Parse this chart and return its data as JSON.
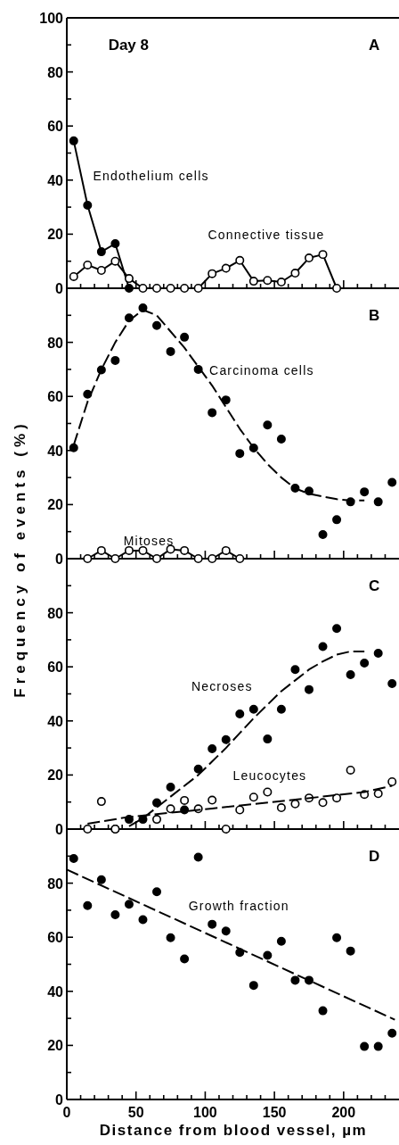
{
  "chart_data": [
    {
      "type": "line",
      "annotations": [
        "Day 8",
        "A"
      ],
      "xlim": [
        0,
        240
      ],
      "ylim": [
        0,
        100
      ],
      "tick_labels": "y",
      "grid": false,
      "xticks": [
        0,
        {
          "value": 10,
          "label": null
        },
        {
          "value": 20,
          "label": null
        },
        {
          "value": 30,
          "label": null
        },
        {
          "value": 40,
          "label": null
        },
        {
          "value": 50,
          "label": null
        },
        {
          "value": 60,
          "label": null
        },
        {
          "value": 70,
          "label": null
        },
        {
          "value": 80,
          "label": null
        },
        {
          "value": 90,
          "label": null
        },
        {
          "value": 100,
          "label": null
        },
        {
          "value": 110,
          "label": null
        },
        {
          "value": 120,
          "label": null
        },
        {
          "value": 130,
          "label": null
        },
        {
          "value": 140,
          "label": null
        },
        {
          "value": 150,
          "label": null
        },
        {
          "value": 160,
          "label": null
        },
        {
          "value": 170,
          "label": null
        },
        {
          "value": 180,
          "label": null
        },
        {
          "value": 190,
          "label": null
        },
        {
          "value": 200,
          "label": null
        },
        {
          "value": 210,
          "label": null
        },
        {
          "value": 220,
          "label": null
        },
        {
          "value": 230,
          "label": null
        }
      ],
      "yticks": [
        0,
        {
          "value": 10,
          "label": null
        },
        20,
        {
          "value": 30,
          "label": null
        },
        40,
        {
          "value": 50,
          "label": null
        },
        60,
        {
          "value": 70,
          "label": null
        },
        80,
        {
          "value": 90,
          "label": null
        },
        100
      ],
      "series": [
        {
          "name": "Endothelium cells",
          "color": "#000000",
          "marker": "circle",
          "line_style": "solid",
          "x": [
            5,
            15,
            25,
            35,
            45
          ],
          "values": [
            54.5,
            30.7,
            13.5,
            16.5,
            0
          ]
        },
        {
          "name": "Connective tissue",
          "color": "#ffffff",
          "marker": "circle",
          "line_style": "solid",
          "x": [
            5,
            15,
            25,
            35,
            45,
            55,
            65,
            75,
            85,
            95,
            105,
            115,
            125,
            135,
            145,
            155,
            165,
            175,
            185,
            195
          ],
          "values": [
            4.3,
            8.6,
            6.6,
            10,
            3.6,
            0,
            0,
            0,
            0,
            0,
            5.4,
            7.4,
            10.3,
            2.6,
            2.9,
            2.3,
            5.6,
            11.2,
            12.5,
            0
          ]
        }
      ]
    },
    {
      "type": "line",
      "annotations": [
        "B"
      ],
      "ylabel": "Frequency of events (%)",
      "xlim": [
        0,
        240
      ],
      "ylim": [
        0,
        100
      ],
      "tick_labels": "y",
      "grid": false,
      "xticks": [
        0,
        {
          "value": 10,
          "label": null
        },
        {
          "value": 20,
          "label": null
        },
        {
          "value": 30,
          "label": null
        },
        {
          "value": 40,
          "label": null
        },
        {
          "value": 50,
          "label": null
        },
        {
          "value": 60,
          "label": null
        },
        {
          "value": 70,
          "label": null
        },
        {
          "value": 80,
          "label": null
        },
        {
          "value": 90,
          "label": null
        },
        {
          "value": 100,
          "label": null
        },
        {
          "value": 110,
          "label": null
        },
        {
          "value": 120,
          "label": null
        },
        {
          "value": 130,
          "label": null
        },
        {
          "value": 140,
          "label": null
        },
        {
          "value": 150,
          "label": null
        },
        {
          "value": 160,
          "label": null
        },
        {
          "value": 170,
          "label": null
        },
        {
          "value": 180,
          "label": null
        },
        {
          "value": 190,
          "label": null
        },
        {
          "value": 200,
          "label": null
        },
        {
          "value": 210,
          "label": null
        },
        {
          "value": 220,
          "label": null
        },
        {
          "value": 230,
          "label": null
        }
      ],
      "yticks": [
        0,
        {
          "value": 10,
          "label": null
        },
        20,
        {
          "value": 30,
          "label": null
        },
        40,
        {
          "value": 50,
          "label": null
        },
        60,
        {
          "value": 70,
          "label": null
        },
        80,
        {
          "value": 90,
          "label": null
        }
      ],
      "series": [
        {
          "name": "Carcinoma cells",
          "type": "scatter",
          "color": "#000000",
          "marker": "circle",
          "x": [
            5,
            15,
            25,
            35,
            45,
            55,
            65,
            75,
            85,
            95,
            105,
            115,
            125,
            135,
            145,
            155,
            165,
            175,
            185,
            195,
            205,
            215,
            225,
            235
          ],
          "values": [
            41,
            60.8,
            69.8,
            73.3,
            89,
            92.7,
            86.2,
            76.6,
            81.9,
            70,
            54,
            58.7,
            38.9,
            40.9,
            49.4,
            44.2,
            26.1,
            25,
            8.9,
            14.4,
            21,
            24.7,
            21,
            28.2
          ]
        },
        {
          "color": "#000000",
          "marker": "none",
          "line_style": "dashed",
          "x": [
            5,
            15,
            25,
            35,
            45,
            55,
            65,
            75,
            85,
            95,
            105,
            115,
            125,
            135,
            145,
            155,
            165,
            175,
            185,
            195,
            205,
            215
          ],
          "values": [
            42,
            58,
            70,
            80,
            88,
            92,
            90,
            84,
            78,
            71,
            64,
            56,
            48,
            41,
            35,
            30,
            26,
            24,
            23,
            22,
            21.5,
            21.5
          ]
        },
        {
          "name": "Mitoses",
          "color": "#ffffff",
          "marker": "circle",
          "line_style": "solid",
          "x": [
            15,
            25,
            35,
            45,
            55,
            65,
            75,
            85,
            95,
            105,
            115,
            125
          ],
          "values": [
            0,
            3,
            0,
            3,
            3,
            0,
            3.5,
            3,
            0,
            0,
            3,
            0
          ]
        }
      ]
    },
    {
      "type": "line",
      "annotations": [
        "C"
      ],
      "xlim": [
        0,
        240
      ],
      "ylim": [
        0,
        100
      ],
      "tick_labels": "y",
      "grid": false,
      "xticks": [
        0,
        {
          "value": 10,
          "label": null
        },
        {
          "value": 20,
          "label": null
        },
        {
          "value": 30,
          "label": null
        },
        {
          "value": 40,
          "label": null
        },
        {
          "value": 50,
          "label": null
        },
        {
          "value": 60,
          "label": null
        },
        {
          "value": 70,
          "label": null
        },
        {
          "value": 80,
          "label": null
        },
        {
          "value": 90,
          "label": null
        },
        {
          "value": 100,
          "label": null
        },
        {
          "value": 110,
          "label": null
        },
        {
          "value": 120,
          "label": null
        },
        {
          "value": 130,
          "label": null
        },
        {
          "value": 140,
          "label": null
        },
        {
          "value": 150,
          "label": null
        },
        {
          "value": 160,
          "label": null
        },
        {
          "value": 170,
          "label": null
        },
        {
          "value": 180,
          "label": null
        },
        {
          "value": 190,
          "label": null
        },
        {
          "value": 200,
          "label": null
        },
        {
          "value": 210,
          "label": null
        },
        {
          "value": 220,
          "label": null
        },
        {
          "value": 230,
          "label": null
        }
      ],
      "yticks": [
        0,
        {
          "value": 10,
          "label": null
        },
        20,
        {
          "value": 30,
          "label": null
        },
        40,
        {
          "value": 50,
          "label": null
        },
        60,
        {
          "value": 70,
          "label": null
        },
        80,
        {
          "value": 90,
          "label": null
        }
      ],
      "series": [
        {
          "name": "Necroses",
          "type": "scatter",
          "color": "#000000",
          "marker": "circle",
          "x": [
            35,
            45,
            55,
            65,
            75,
            85,
            95,
            105,
            115,
            125,
            135,
            145,
            155,
            165,
            175,
            185,
            195,
            205,
            215,
            225,
            235
          ],
          "values": [
            0,
            3.6,
            3.6,
            9.7,
            15.5,
            7.1,
            22.2,
            29.7,
            33.1,
            42.6,
            44.3,
            33.3,
            44.3,
            59,
            51.6,
            67.5,
            74.2,
            57.1,
            61.4,
            65,
            53.8
          ]
        },
        {
          "color": "#000000",
          "marker": "none",
          "line_style": "dashed",
          "x": [
            45,
            55,
            65,
            75,
            85,
            95,
            105,
            115,
            125,
            135,
            145,
            155,
            165,
            175,
            185,
            195,
            205,
            215
          ],
          "values": [
            1,
            4,
            8,
            12,
            16,
            20,
            25,
            30,
            35.5,
            41,
            46,
            51,
            55,
            59,
            62,
            64.5,
            65.7,
            65.7
          ]
        },
        {
          "name": "Leucocytes",
          "type": "scatter",
          "color": "#ffffff",
          "marker": "circle",
          "x": [
            15,
            25,
            35,
            65,
            75,
            85,
            95,
            105,
            115,
            125,
            135,
            145,
            155,
            165,
            175,
            185,
            195,
            205,
            215,
            225,
            235
          ],
          "values": [
            0,
            10.2,
            0,
            3.6,
            7.5,
            10.6,
            7.5,
            10.7,
            0,
            7.1,
            11.8,
            13.7,
            7.9,
            9.3,
            11.5,
            9.8,
            11.5,
            21.8,
            12.8,
            13.1,
            17.5
          ]
        },
        {
          "color": "#000000",
          "marker": "none",
          "line_style": "dashed",
          "x": [
            15,
            45,
            105,
            165,
            215,
            235
          ],
          "values": [
            2,
            4.5,
            7.6,
            10.9,
            13.7,
            16
          ]
        }
      ]
    },
    {
      "type": "line",
      "annotations": [
        "D"
      ],
      "xlabel": "Distance from blood vessel, µm",
      "xlim": [
        0,
        240
      ],
      "ylim": [
        0,
        100
      ],
      "grid": false,
      "xticks": [
        0,
        {
          "value": 10,
          "label": null
        },
        {
          "value": 20,
          "label": null
        },
        {
          "value": 30,
          "label": null
        },
        {
          "value": 40,
          "label": null
        },
        50,
        {
          "value": 60,
          "label": null
        },
        {
          "value": 70,
          "label": null
        },
        {
          "value": 80,
          "label": null
        },
        {
          "value": 90,
          "label": null
        },
        100,
        {
          "value": 110,
          "label": null
        },
        {
          "value": 120,
          "label": null
        },
        {
          "value": 130,
          "label": null
        },
        {
          "value": 140,
          "label": null
        },
        150,
        {
          "value": 160,
          "label": null
        },
        {
          "value": 170,
          "label": null
        },
        {
          "value": 180,
          "label": null
        },
        {
          "value": 190,
          "label": null
        },
        200,
        {
          "value": 210,
          "label": null
        },
        {
          "value": 220,
          "label": null
        },
        {
          "value": 230,
          "label": null
        }
      ],
      "yticks": [
        0,
        {
          "value": 10,
          "label": null
        },
        20,
        {
          "value": 30,
          "label": null
        },
        40,
        {
          "value": 50,
          "label": null
        },
        60,
        {
          "value": 70,
          "label": null
        },
        80,
        {
          "value": 90,
          "label": null
        }
      ],
      "series": [
        {
          "name": "Growth fraction",
          "type": "scatter",
          "color": "#000000",
          "marker": "circle",
          "x": [
            5,
            15,
            25,
            35,
            45,
            55,
            65,
            75,
            85,
            95,
            105,
            115,
            125,
            135,
            145,
            155,
            165,
            175,
            185,
            195,
            205,
            215,
            225,
            235
          ],
          "values": [
            89.1,
            71.7,
            81.3,
            68.3,
            72.2,
            66.5,
            76.8,
            59.8,
            52,
            89.6,
            64.8,
            62.3,
            54.4,
            42.2,
            53.3,
            58.5,
            44.1,
            44.1,
            32.8,
            59.8,
            54.9,
            19.6,
            19.6,
            24.5
          ]
        },
        {
          "color": "#000000",
          "marker": "none",
          "line_style": "dashed",
          "x": [
            0,
            237
          ],
          "values": [
            85,
            29.5
          ]
        }
      ]
    }
  ]
}
